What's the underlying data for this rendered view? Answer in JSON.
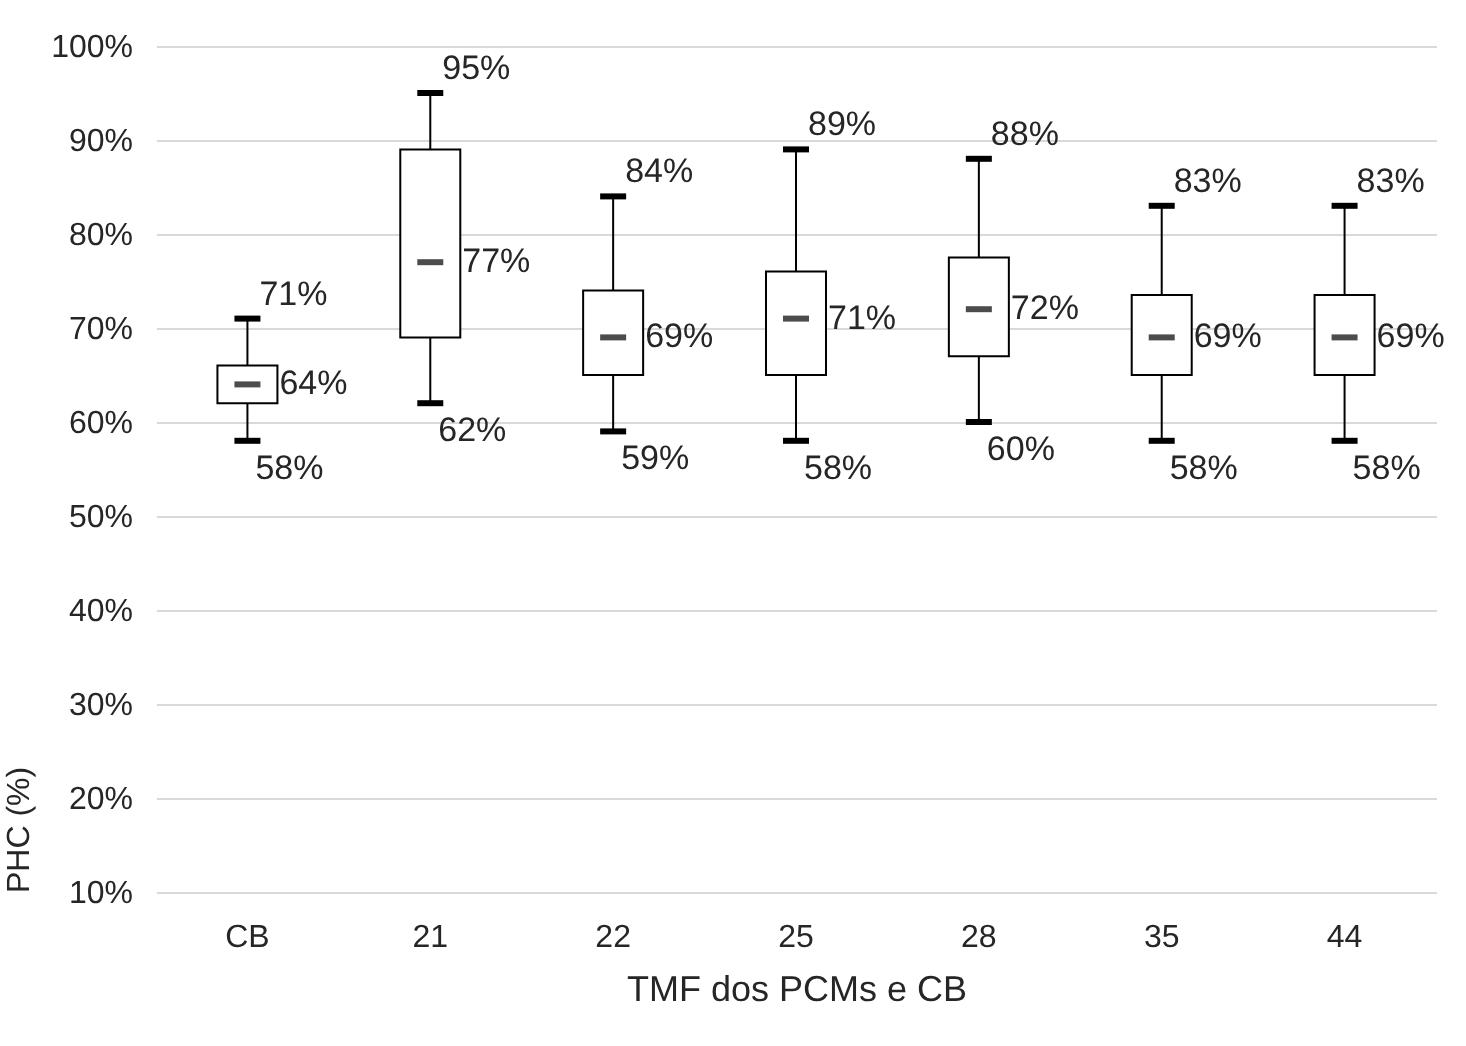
{
  "chart_data": {
    "type": "box",
    "xlabel": "TMF dos PCMs e CB",
    "ylabel": "PHC (%)",
    "categories": [
      "CB",
      "21",
      "22",
      "25",
      "28",
      "35",
      "44"
    ],
    "boxes": [
      {
        "low": 58,
        "q1": 62,
        "median": 64,
        "q3": 66,
        "high": 71
      },
      {
        "low": 62,
        "q1": 69,
        "median": 77,
        "q3": 89,
        "high": 95
      },
      {
        "low": 59,
        "q1": 65,
        "median": 69,
        "q3": 74,
        "high": 84
      },
      {
        "low": 58,
        "q1": 65,
        "median": 71,
        "q3": 76,
        "high": 89
      },
      {
        "low": 60,
        "q1": 67,
        "median": 72,
        "q3": 77.5,
        "high": 88
      },
      {
        "low": 58,
        "q1": 65,
        "median": 69,
        "q3": 73.5,
        "high": 83
      },
      {
        "low": 58,
        "q1": 65,
        "median": 69,
        "q3": 73.5,
        "high": 83
      }
    ],
    "ylim": [
      10,
      100
    ],
    "yticks": [
      {
        "value": 10,
        "label": "10%"
      },
      {
        "value": 20,
        "label": "20%"
      },
      {
        "value": 30,
        "label": "30%"
      },
      {
        "value": 40,
        "label": "40%"
      },
      {
        "value": 50,
        "label": "50%"
      },
      {
        "value": 60,
        "label": "60%"
      },
      {
        "value": 70,
        "label": "70%"
      },
      {
        "value": 80,
        "label": "80%"
      },
      {
        "value": 90,
        "label": "90%"
      },
      {
        "value": 100,
        "label": "100%"
      }
    ],
    "grid": "y",
    "annotations": [
      {
        "text": "71%",
        "x": "CB",
        "y": 71
      },
      {
        "text": "64%",
        "x": "CB",
        "y": 64
      },
      {
        "text": "58%",
        "x": "CB",
        "y": 58
      },
      {
        "text": "95%",
        "x": "21",
        "y": 95
      },
      {
        "text": "77%",
        "x": "21",
        "y": 77
      },
      {
        "text": "62%",
        "x": "21",
        "y": 62
      },
      {
        "text": "84%",
        "x": "22",
        "y": 84
      },
      {
        "text": "69%",
        "x": "22",
        "y": 69
      },
      {
        "text": "59%",
        "x": "22",
        "y": 59
      },
      {
        "text": "89%",
        "x": "25",
        "y": 89
      },
      {
        "text": "71%",
        "x": "25",
        "y": 71
      },
      {
        "text": "58%",
        "x": "25",
        "y": 58
      },
      {
        "text": "88%",
        "x": "28",
        "y": 88
      },
      {
        "text": "72%",
        "x": "28",
        "y": 72
      },
      {
        "text": "60%",
        "x": "28",
        "y": 60
      },
      {
        "text": "83%",
        "x": "35",
        "y": 83
      },
      {
        "text": "69%",
        "x": "35",
        "y": 69
      },
      {
        "text": "58%",
        "x": "35",
        "y": 58
      },
      {
        "text": "83%",
        "x": "44",
        "y": 83
      },
      {
        "text": "69%",
        "x": "44",
        "y": 69
      },
      {
        "text": "58%",
        "x": "44",
        "y": 58
      }
    ]
  }
}
